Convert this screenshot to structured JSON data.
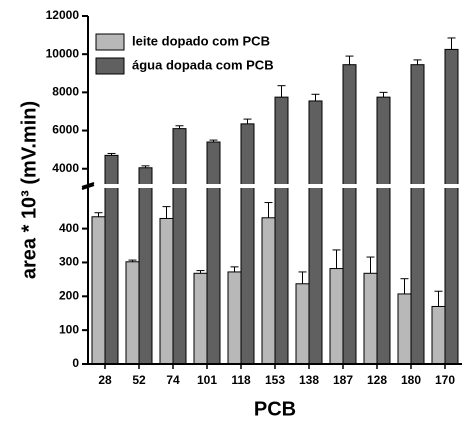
{
  "chart_data": {
    "type": "bar",
    "x_label": "PCB",
    "y_label": "area * 10³ (mV.min)",
    "categories": [
      "28",
      "52",
      "74",
      "101",
      "118",
      "153",
      "138",
      "187",
      "128",
      "180",
      "170"
    ],
    "series": [
      {
        "name": "leite dopado com PCB",
        "color": "#b8b8b8",
        "values": [
          435,
          302,
          430,
          268,
          272,
          432,
          237,
          282,
          268,
          207,
          170
        ],
        "errors": [
          12,
          5,
          35,
          8,
          15,
          45,
          35,
          55,
          48,
          45,
          45
        ]
      },
      {
        "name": "água dopada com PCB",
        "color": "#606060",
        "values": [
          4700,
          4050,
          6100,
          5400,
          6350,
          7750,
          7550,
          9450,
          7750,
          9450,
          10250
        ],
        "errors": [
          100,
          100,
          150,
          100,
          250,
          600,
          350,
          450,
          250,
          250,
          600
        ]
      }
    ],
    "ylim": [
      0,
      520
    ],
    "yticks": [
      0,
      100,
      200,
      300,
      400
    ],
    "ylim_upper": [
      3200,
      12000
    ],
    "yticks_upper": [
      4000,
      6000,
      8000,
      10000,
      12000
    ],
    "legend": "upper-left"
  }
}
